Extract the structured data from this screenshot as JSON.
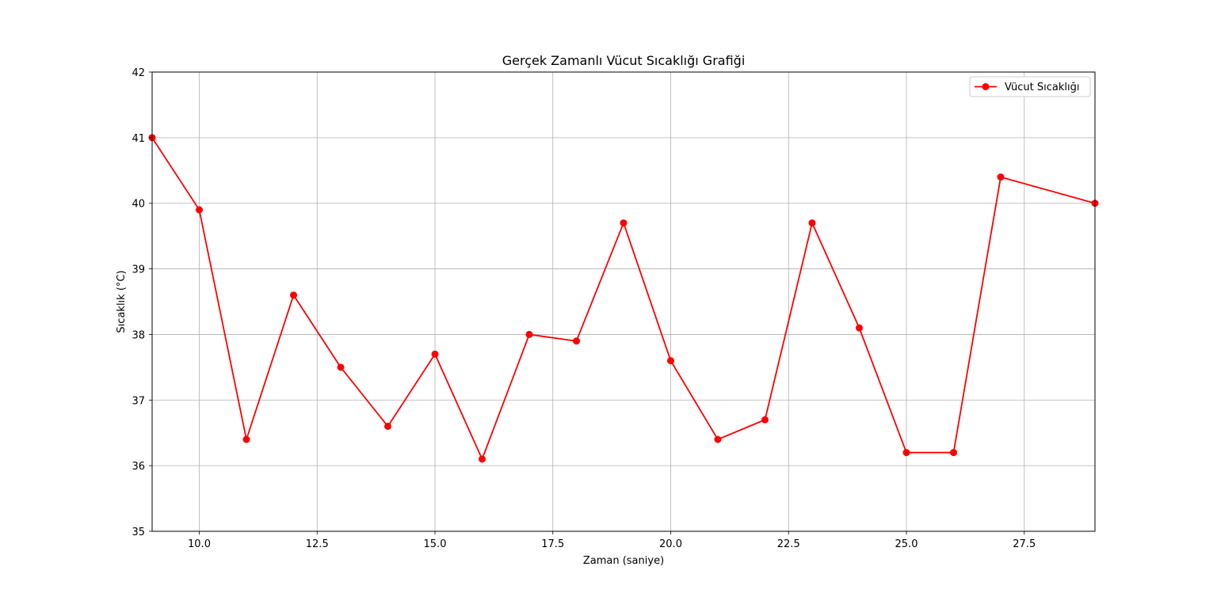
{
  "chart_data": {
    "type": "line",
    "title": "Gerçek Zamanlı Vücut Sıcaklığı Grafiği",
    "xlabel": "Zaman (saniye)",
    "ylabel": "Sıcaklık (°C)",
    "xlim": [
      9,
      29
    ],
    "ylim": [
      35,
      42
    ],
    "xticks": [
      10.0,
      12.5,
      15.0,
      17.5,
      20.0,
      22.5,
      25.0,
      27.5
    ],
    "xtick_labels": [
      "10.0",
      "12.5",
      "15.0",
      "17.5",
      "20.0",
      "22.5",
      "25.0",
      "27.5"
    ],
    "yticks": [
      35,
      36,
      37,
      38,
      39,
      40,
      41,
      42
    ],
    "ytick_labels": [
      "35",
      "36",
      "37",
      "38",
      "39",
      "40",
      "41",
      "42"
    ],
    "grid": true,
    "legend_position": "top-right",
    "series": [
      {
        "name": "Vücut Sıcaklığı",
        "color": "#ff0000",
        "marker": "circle",
        "x": [
          9,
          10,
          11,
          12,
          13,
          14,
          15,
          16,
          17,
          18,
          19,
          20,
          21,
          22,
          23,
          24,
          25,
          26,
          27,
          29
        ],
        "y": [
          41.0,
          39.9,
          36.4,
          38.6,
          37.5,
          36.6,
          37.7,
          36.1,
          38.0,
          37.9,
          39.7,
          37.6,
          36.4,
          36.7,
          39.7,
          38.1,
          36.2,
          36.2,
          40.4,
          40.0
        ]
      }
    ]
  }
}
